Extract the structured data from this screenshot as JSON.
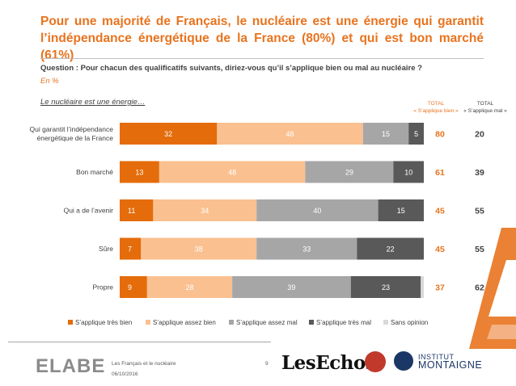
{
  "title": "Pour une majorité de Français, le nucléaire est une énergie qui garantit l’indépendance énergétique de la France (80%) et qui est bon marché (61%)",
  "question": "Question : Pour chacun des qualificatifs suivants, diriez-vous qu’il s’applique bien ou mal au nucléaire ?",
  "unit": "En  %",
  "subtitle": "Le nucléaire est une énergie…",
  "headers": {
    "total_good_line1": "TOTAL",
    "total_good_line2": "« S’applique bien »",
    "total_bad_line1": "TOTAL",
    "total_bad_line2": "« S’applique mal »"
  },
  "chart_data": {
    "type": "bar",
    "orientation": "horizontal",
    "stacked": true,
    "categories": [
      "Qui garantit l’indépendance énergétique de la France",
      "Bon marché",
      "Qui a de l’avenir",
      "Sûre",
      "Propre"
    ],
    "series": [
      {
        "name": "S’applique très bien",
        "color": "#e46c0a",
        "values": [
          32,
          13,
          11,
          7,
          9
        ]
      },
      {
        "name": "S’applique assez bien",
        "color": "#fac090",
        "values": [
          48,
          48,
          34,
          38,
          28
        ]
      },
      {
        "name": "S’applique assez mal",
        "color": "#a6a6a6",
        "values": [
          15,
          29,
          40,
          33,
          39
        ]
      },
      {
        "name": "S’applique très mal",
        "color": "#595959",
        "values": [
          5,
          10,
          15,
          22,
          23
        ]
      },
      {
        "name": "Sans opinion",
        "color": "#d9d9d9",
        "values": [
          0,
          0,
          0,
          0,
          1
        ]
      }
    ],
    "total_good": [
      80,
      61,
      45,
      45,
      37
    ],
    "total_bad": [
      20,
      39,
      55,
      55,
      62
    ],
    "legend_position": "bottom",
    "grid": false
  },
  "footer": {
    "logo": "ELABE",
    "study": "Les Français et le nucléaire",
    "date": "06/10/2016",
    "page": "9",
    "partner1": "LesEchos",
    "partner3_line1": "INSTITUT",
    "partner3_line2": "MONTAIGNE"
  },
  "colors": {
    "accent": "#e8731e",
    "dark_text": "#404040"
  }
}
